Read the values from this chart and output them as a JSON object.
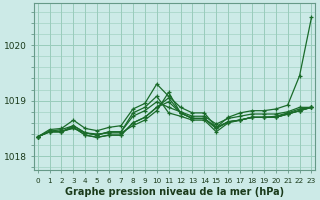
{
  "title": "Graphe pression niveau de la mer (hPa)",
  "background_color": "#cceae7",
  "grid_color": "#99ccbb",
  "line_color": "#1a6b2a",
  "x_labels": [
    "0",
    "1",
    "2",
    "3",
    "4",
    "5",
    "6",
    "7",
    "8",
    "9",
    "10",
    "11",
    "12",
    "13",
    "14",
    "15",
    "16",
    "17",
    "18",
    "19",
    "20",
    "21",
    "22",
    "23"
  ],
  "ylim": [
    1017.75,
    1020.75
  ],
  "yticks": [
    1018,
    1019,
    1020
  ],
  "series": [
    [
      1018.35,
      1018.45,
      1018.45,
      1018.5,
      1018.42,
      1018.4,
      1018.42,
      1018.42,
      1018.55,
      1018.65,
      1018.82,
      1019.15,
      1018.78,
      1018.68,
      1018.68,
      1018.52,
      1018.62,
      1018.65,
      1018.7,
      1018.7,
      1018.72,
      1018.78,
      1018.85,
      1018.88
    ],
    [
      1018.35,
      1018.45,
      1018.48,
      1018.55,
      1018.42,
      1018.38,
      1018.44,
      1018.44,
      1018.72,
      1018.82,
      1018.98,
      1018.88,
      1018.8,
      1018.72,
      1018.72,
      1018.58,
      1018.68,
      1018.72,
      1018.76,
      1018.76,
      1018.76,
      1018.8,
      1018.88,
      1018.88
    ],
    [
      1018.35,
      1018.44,
      1018.44,
      1018.52,
      1018.38,
      1018.34,
      1018.38,
      1018.38,
      1018.6,
      1018.7,
      1018.88,
      1018.98,
      1018.78,
      1018.68,
      1018.68,
      1018.5,
      1018.62,
      1018.65,
      1018.7,
      1018.7,
      1018.7,
      1018.76,
      1018.82,
      1018.88
    ],
    [
      1018.35,
      1018.44,
      1018.44,
      1018.55,
      1018.42,
      1018.38,
      1018.44,
      1018.44,
      1018.78,
      1018.88,
      1019.08,
      1018.78,
      1018.72,
      1018.65,
      1018.65,
      1018.44,
      1018.6,
      1018.65,
      1018.7,
      1018.7,
      1018.7,
      1018.76,
      1018.82,
      1018.88
    ],
    [
      1018.35,
      1018.44,
      1018.44,
      1018.52,
      1018.38,
      1018.34,
      1018.38,
      1018.38,
      1018.6,
      1018.7,
      1018.88,
      1019.05,
      1018.78,
      1018.68,
      1018.68,
      1018.5,
      1018.62,
      1018.65,
      1018.7,
      1018.7,
      1018.7,
      1018.76,
      1018.82,
      1018.88
    ],
    [
      1018.35,
      1018.48,
      1018.5,
      1018.65,
      1018.5,
      1018.46,
      1018.52,
      1018.55,
      1018.85,
      1018.95,
      1019.3,
      1019.08,
      1018.88,
      1018.78,
      1018.78,
      1018.52,
      1018.7,
      1018.78,
      1018.82,
      1018.82,
      1018.85,
      1018.92,
      1019.45,
      1020.5
    ]
  ]
}
